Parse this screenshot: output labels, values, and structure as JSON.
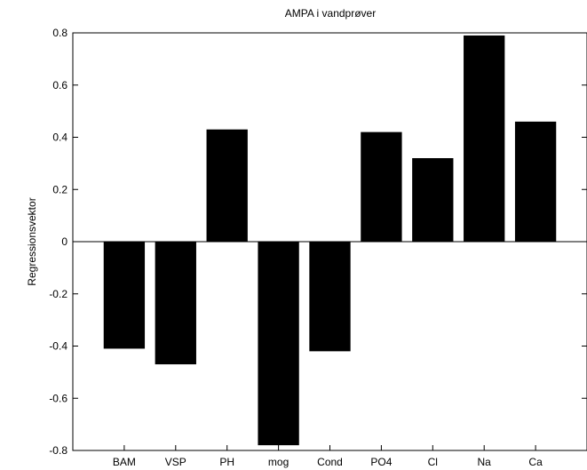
{
  "chart_data": {
    "type": "bar",
    "title": "AMPA i vandprøver",
    "xlabel": "",
    "ylabel": "Regressionsvektor",
    "categories": [
      "BAM",
      "VSP",
      "PH",
      "mog",
      "Cond",
      "PO4",
      "Cl",
      "Na",
      "Ca"
    ],
    "values": [
      -0.41,
      -0.47,
      0.43,
      -0.78,
      -0.42,
      0.42,
      0.32,
      0.79,
      0.46
    ],
    "ylim": [
      -0.8,
      0.8
    ],
    "yticks": [
      -0.8,
      -0.6,
      -0.4,
      -0.2,
      0,
      0.2,
      0.4,
      0.6,
      0.8
    ],
    "ytick_labels": [
      "-0.8",
      "-0.6",
      "-0.4",
      "-0.2",
      "0",
      "0.2",
      "0.4",
      "0.6",
      "0.8"
    ],
    "bar_color": "#000000",
    "grid": false,
    "legend": "none"
  }
}
